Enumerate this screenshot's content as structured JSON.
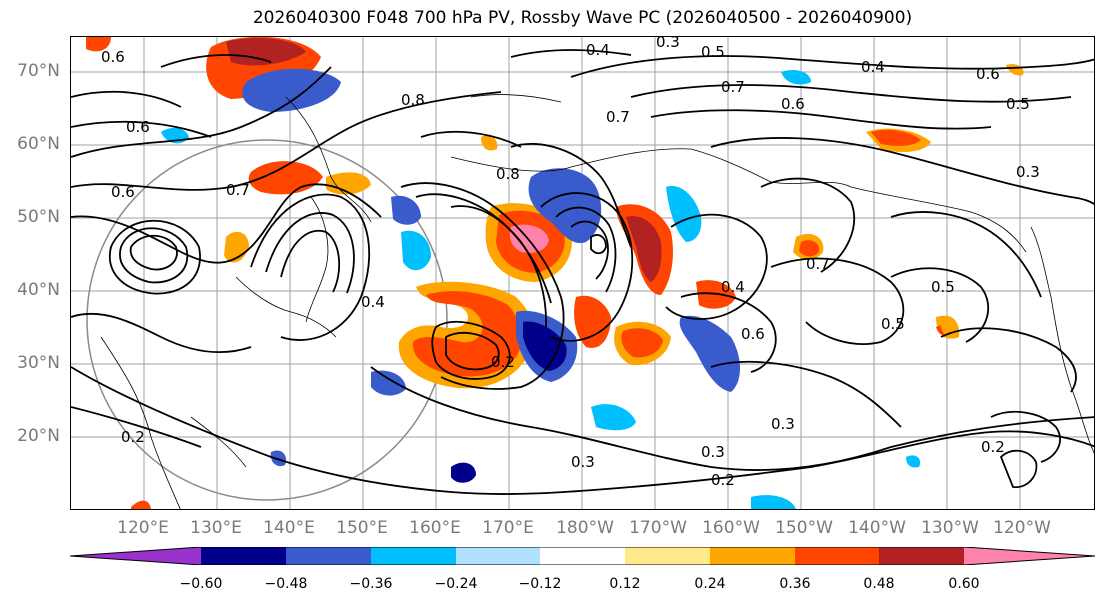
{
  "title": "2026040300 F048 700 hPa PV, Rossby Wave PC (2026040500 - 2026040900)",
  "lat_labels": [
    "70°N",
    "60°N",
    "50°N",
    "40°N",
    "30°N",
    "20°N"
  ],
  "lon_labels": [
    "120°E",
    "130°E",
    "140°E",
    "150°E",
    "160°E",
    "170°E",
    "180°W",
    "170°W",
    "160°W",
    "150°W",
    "140°W",
    "130°W",
    "120°W"
  ],
  "contour_labels": [
    "0.6",
    "0.6",
    "0.3",
    "0.4",
    "0.5",
    "0.7",
    "0.6",
    "0.8",
    "0.7",
    "0.6",
    "0.8",
    "0.6",
    "0.5",
    "0.4",
    "0.6",
    "0.7",
    "0.2",
    "0.3",
    "0.2",
    "0.3",
    "0.2",
    "0.3",
    "0.5",
    "0.4",
    "0.5",
    "0.4",
    "0.7",
    "0.3",
    "0.2"
  ],
  "colorbar": {
    "ticks": [
      "−0.60",
      "−0.48",
      "−0.36",
      "−0.24",
      "−0.12",
      "0.12",
      "0.24",
      "0.36",
      "0.48",
      "0.60"
    ],
    "colors": [
      "#9a32cd",
      "#00008b",
      "#3a5bcc",
      "#00bfff",
      "#b0e2ff",
      "#ffffff",
      "#ffe98a",
      "#ffa500",
      "#ff4500",
      "#b22222",
      "#ff82ab"
    ]
  }
}
